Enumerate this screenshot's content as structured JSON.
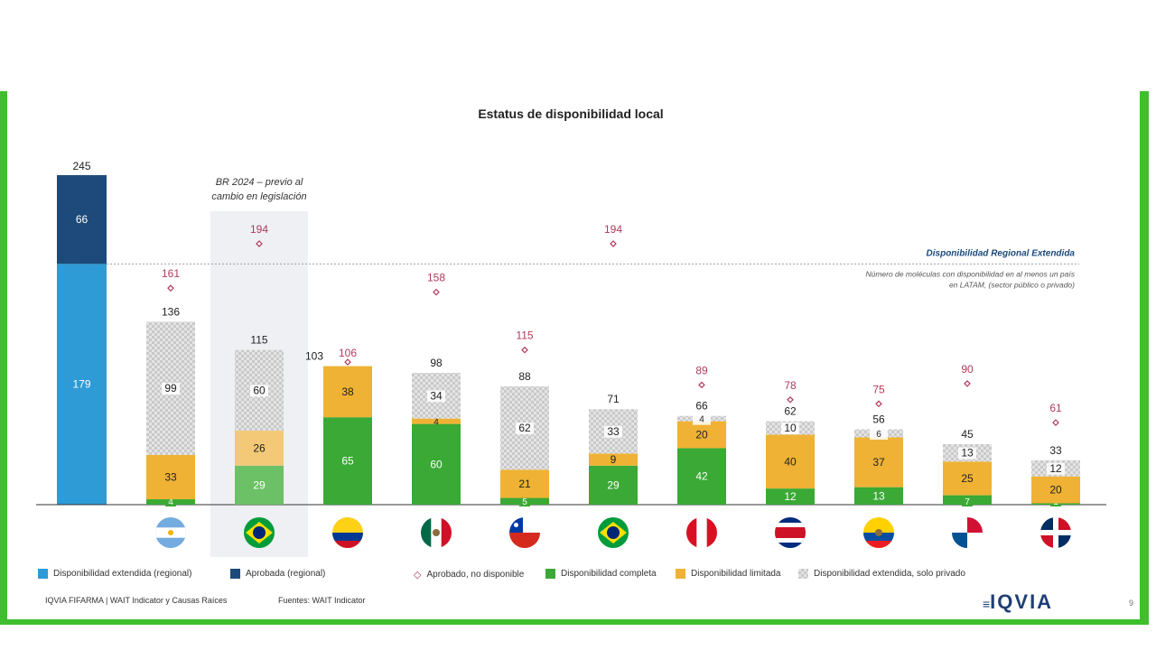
{
  "title": "Estatus de disponibilidad local",
  "annotation_br2024": [
    "BR 2024 – previo al",
    "cambio en legislación"
  ],
  "regional_line_label": "Disponibilidad Regional Extendida",
  "regional_note": [
    "Número de moléculas con disponibilidad en al menos un país",
    "en LATAM, (sector público o privado)"
  ],
  "legend": {
    "extendida_regional": "Disponibilidad extendida (regional)",
    "aprobada_regional": "Aprobada (regional)",
    "aprobado_no_disponible": "Aprobado, no disponible",
    "completa": "Disponibilidad completa",
    "limitada": "Disponibilidad limitada",
    "extendida_privado": "Disponibilidad extendida, solo privado"
  },
  "footer": {
    "left": "IQVIA FIFARMA | WAIT Indicator y Causas Raíces",
    "source": "Fuentes: WAIT Indicator",
    "logo": "IQVIA",
    "page": "9"
  },
  "colors": {
    "regional_light": "#2e9bd6",
    "regional_dark": "#1d4a7a",
    "completa": "#3aa935",
    "completa_faded": "#6cc066",
    "limitada": "#efb234",
    "limitada_faded": "#f3c978",
    "privado": "#d9d9d9",
    "diamond": "#b03a5a"
  },
  "chart_data": {
    "type": "bar",
    "title": "Estatus de disponibilidad local",
    "regional": {
      "total": 245,
      "extendida": 179,
      "aprobada": 66
    },
    "regional_line_value": 179,
    "categories": [
      "Argentina",
      "Brasil 2024",
      "Colombia",
      "México",
      "Chile",
      "Brasil",
      "Perú",
      "Costa Rica",
      "Ecuador",
      "Panamá",
      "República Dominicana"
    ],
    "series": [
      {
        "name": "Disponibilidad completa",
        "values": [
          4,
          29,
          65,
          60,
          5,
          29,
          42,
          12,
          13,
          7,
          1
        ]
      },
      {
        "name": "Disponibilidad limitada",
        "values": [
          33,
          26,
          38,
          4,
          21,
          9,
          20,
          40,
          37,
          25,
          20
        ]
      },
      {
        "name": "Disponibilidad extendida, solo privado",
        "values": [
          99,
          60,
          0,
          34,
          62,
          33,
          4,
          10,
          6,
          13,
          12
        ]
      }
    ],
    "totals": [
      136,
      115,
      103,
      98,
      88,
      71,
      66,
      62,
      56,
      45,
      33
    ],
    "approved_not_available": [
      161,
      194,
      106,
      158,
      115,
      194,
      89,
      78,
      75,
      90,
      61
    ],
    "ylim": [
      0,
      245
    ]
  }
}
